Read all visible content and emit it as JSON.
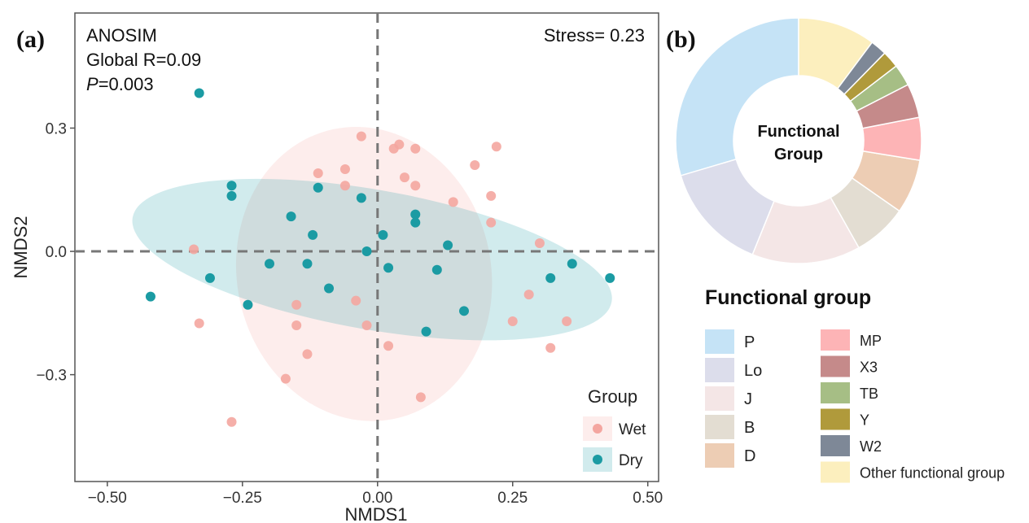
{
  "chart_data": [
    {
      "panel": "(a)",
      "type": "scatter",
      "xlabel": "NMDS1",
      "ylabel": "NMDS2",
      "xlim": [
        -0.56,
        0.52
      ],
      "ylim": [
        -0.56,
        0.58
      ],
      "x_ticks": [
        -0.5,
        -0.25,
        0.0,
        0.25,
        0.5
      ],
      "x_tick_labels": [
        "−0.50",
        "−0.25",
        "0.00",
        "0.25",
        "0.50"
      ],
      "y_ticks": [
        -0.3,
        0.0,
        0.3
      ],
      "y_tick_labels": [
        "−0.3",
        "0.0",
        "0.3"
      ],
      "grid": false,
      "reference_lines": {
        "x": 0,
        "y": 0,
        "style": "dashed"
      },
      "annotations": {
        "anosim_line1": "ANOSIM",
        "anosim_line2": "Global R=0.09",
        "anosim_p_label": "P",
        "anosim_p_value": "=0.003",
        "stress": "Stress= 0.23"
      },
      "legend": {
        "title": "Group",
        "position": "bottom-right"
      },
      "series": [
        {
          "name": "Wet",
          "color": "#F4A6A0",
          "ellipse": {
            "center": [
              -0.025,
              -0.055
            ],
            "rx": 0.235,
            "ry": 0.36,
            "angle": 12
          },
          "x": [
            -0.03,
            0.03,
            0.04,
            0.07,
            0.22,
            -0.11,
            -0.06,
            0.05,
            0.18,
            -0.06,
            0.07,
            0.21,
            0.14,
            0.21,
            -0.34,
            0.3,
            -0.15,
            -0.04,
            0.28,
            -0.33,
            -0.15,
            -0.02,
            0.25,
            0.35,
            0.02,
            0.32,
            -0.13,
            -0.17,
            0.08,
            -0.27
          ],
          "y": [
            0.28,
            0.25,
            0.26,
            0.25,
            0.255,
            0.19,
            0.2,
            0.18,
            0.21,
            0.16,
            0.16,
            0.135,
            0.12,
            0.07,
            0.005,
            0.02,
            -0.13,
            -0.12,
            -0.105,
            -0.175,
            -0.18,
            -0.18,
            -0.17,
            -0.17,
            -0.23,
            -0.235,
            -0.25,
            -0.31,
            -0.355,
            -0.415
          ]
        },
        {
          "name": "Dry",
          "color": "#1B9BA3",
          "ellipse": {
            "center": [
              -0.01,
              -0.02
            ],
            "rx": 0.45,
            "ry": 0.17,
            "angle": -10
          },
          "x": [
            -0.33,
            -0.27,
            -0.27,
            -0.11,
            -0.03,
            -0.16,
            -0.12,
            0.07,
            0.07,
            0.01,
            -0.02,
            0.13,
            -0.2,
            -0.13,
            0.02,
            0.11,
            -0.31,
            -0.09,
            -0.24,
            0.36,
            0.32,
            0.43,
            -0.42,
            0.16,
            0.09
          ],
          "y": [
            0.385,
            0.16,
            0.135,
            0.155,
            0.13,
            0.085,
            0.04,
            0.09,
            0.07,
            0.04,
            0.0,
            0.015,
            -0.03,
            -0.03,
            -0.04,
            -0.045,
            -0.065,
            -0.09,
            -0.13,
            -0.03,
            -0.065,
            -0.065,
            -0.11,
            -0.145,
            -0.195
          ]
        }
      ]
    },
    {
      "panel": "(b)",
      "type": "pie",
      "donut": true,
      "center_label_line1": "Functional",
      "center_label_line2": "Group",
      "legend_title": "Functional group",
      "categories": [
        "P",
        "Lo",
        "J",
        "B",
        "D",
        "MP",
        "X3",
        "TB",
        "Y",
        "W2",
        "Other functional group"
      ],
      "values": [
        29,
        14,
        14,
        7,
        7,
        5.5,
        4.4,
        2.8,
        2.2,
        2.1,
        10
      ],
      "colors": [
        "#C5E3F6",
        "#DCDDEB",
        "#F4E6E6",
        "#E3DDD2",
        "#EDCDB4",
        "#FDB4B6",
        "#C58A8A",
        "#A6BE85",
        "#B09A3B",
        "#7E8897",
        "#FCEFBE"
      ]
    }
  ]
}
